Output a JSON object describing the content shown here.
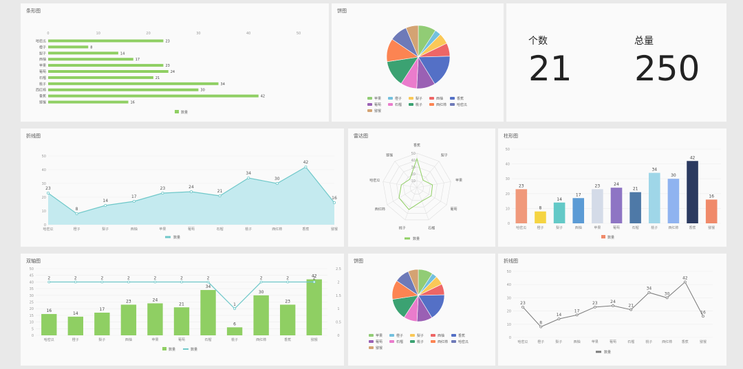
{
  "theme": {
    "green": "#8fcf63",
    "teal": "#6fc8c9",
    "area": "#c4eaef",
    "line": "#7a7a7a",
    "grid": "#eeeeee"
  },
  "stats": {
    "count_label": "个数",
    "count_value": "21",
    "total_label": "总量",
    "total_value": "250"
  },
  "chart_data": [
    {
      "id": "hbar",
      "type": "bar",
      "orientation": "horizontal",
      "title": "条形图",
      "categories": [
        "哈密瓜",
        "橙子",
        "梨子",
        "西柚",
        "苹果",
        "葡萄",
        "石榴",
        "桃子",
        "西红柿",
        "香蕉",
        "猕猴"
      ],
      "series": [
        {
          "name": "数量",
          "values": [
            23,
            8,
            14,
            17,
            23,
            24,
            21,
            34,
            30,
            42,
            16
          ]
        }
      ],
      "xlim": [
        0,
        50
      ],
      "xticks": [
        0,
        10,
        20,
        30,
        40,
        50
      ],
      "legend": "bottom",
      "grid": false
    },
    {
      "id": "pie1",
      "type": "pie",
      "title": "饼图",
      "labels": [
        "苹果",
        "橙子",
        "梨子",
        "西柚",
        "香蕉",
        "葡萄",
        "石榴",
        "桃子",
        "西红柿",
        "哈密瓜",
        "猕猴"
      ],
      "values": [
        23,
        8,
        14,
        17,
        42,
        24,
        21,
        34,
        30,
        23,
        16
      ],
      "legend": "bottom"
    },
    {
      "id": "area",
      "type": "area",
      "title": "折线图",
      "categories": [
        "哈密瓜",
        "橙子",
        "梨子",
        "西柚",
        "苹果",
        "葡萄",
        "石榴",
        "桃子",
        "西红柿",
        "香蕉",
        "猕猴"
      ],
      "series": [
        {
          "name": "数量",
          "values": [
            23,
            8,
            14,
            17,
            23,
            24,
            21,
            34,
            30,
            42,
            16
          ]
        }
      ],
      "ylim": [
        0,
        50
      ],
      "yticks": [
        0,
        10,
        20,
        30,
        40,
        50
      ],
      "legend": "bottom"
    },
    {
      "id": "radar",
      "type": "radar",
      "title": "雷达图",
      "indicators": [
        "香蕉",
        "梨子",
        "苹果",
        "葡萄",
        "石榴",
        "桃子",
        "西红柿",
        "哈密瓜",
        "猕猴"
      ],
      "series": [
        {
          "name": "数量",
          "values": [
            42,
            14,
            23,
            24,
            21,
            34,
            30,
            23,
            16
          ]
        }
      ],
      "rings": [
        10,
        20,
        30,
        40,
        50
      ],
      "max": 50,
      "legend": "bottom"
    },
    {
      "id": "colbar",
      "type": "bar",
      "title": "柱形图",
      "categories": [
        "哈密瓜",
        "橙子",
        "梨子",
        "西柚",
        "苹果",
        "葡萄",
        "石榴",
        "桃子",
        "西红柿",
        "香蕉",
        "猕猴"
      ],
      "series": [
        {
          "name": "数量",
          "values": [
            23,
            8,
            14,
            17,
            23,
            24,
            21,
            34,
            30,
            42,
            16
          ]
        }
      ],
      "colors": [
        "#f0997b",
        "#f5d442",
        "#63c9c7",
        "#5b9bd5",
        "#d4dbe8",
        "#8e75c4",
        "#4e79a7",
        "#9fd6e8",
        "#8fb3f0",
        "#2b3a60",
        "#f08a6a"
      ],
      "ylim": [
        0,
        50
      ],
      "yticks": [
        0,
        10,
        20,
        30,
        40,
        50
      ],
      "legend": "bottom"
    },
    {
      "id": "combo",
      "type": "bar",
      "title": "双轴图",
      "categories": [
        "哈密瓜",
        "橙子",
        "梨子",
        "西柚",
        "苹果",
        "葡萄",
        "石榴",
        "桃子",
        "西红柿",
        "香蕉",
        "猕猴"
      ],
      "series": [
        {
          "name": "数量",
          "values": [
            16,
            14,
            17,
            23,
            24,
            21,
            34,
            6,
            30,
            23,
            42
          ]
        },
        {
          "name": "数量",
          "type": "line",
          "axis": "right",
          "values": [
            2,
            2,
            2,
            2,
            2,
            2,
            2,
            1,
            2,
            2,
            2
          ]
        }
      ],
      "ylim": [
        0,
        50
      ],
      "yticks": [
        0,
        5,
        10,
        15,
        20,
        25,
        30,
        35,
        40,
        45,
        50
      ],
      "y2lim": [
        0,
        2.5
      ],
      "y2ticks": [
        "0",
        "0.5",
        "1",
        "1.5",
        "2",
        "2.5"
      ],
      "legend": "bottom"
    },
    {
      "id": "pie2",
      "type": "pie",
      "title": "饼图",
      "labels": [
        "苹果",
        "橙子",
        "梨子",
        "西柚",
        "香蕉",
        "葡萄",
        "石榴",
        "桃子",
        "西红柿",
        "哈密瓜",
        "猕猴"
      ],
      "values": [
        23,
        8,
        14,
        17,
        42,
        24,
        21,
        34,
        30,
        23,
        16
      ],
      "legend": "bottom"
    },
    {
      "id": "line",
      "type": "line",
      "title": "折线图",
      "categories": [
        "哈密瓜",
        "橙子",
        "梨子",
        "西柚",
        "苹果",
        "葡萄",
        "石榴",
        "桃子",
        "西红柿",
        "香蕉",
        "猕猴"
      ],
      "series": [
        {
          "name": "数量",
          "values": [
            23,
            8,
            14,
            17,
            23,
            24,
            21,
            34,
            30,
            42,
            16
          ]
        }
      ],
      "ylim": [
        0,
        50
      ],
      "yticks": [
        0,
        10,
        20,
        30,
        40,
        50
      ],
      "legend": "bottom"
    }
  ]
}
